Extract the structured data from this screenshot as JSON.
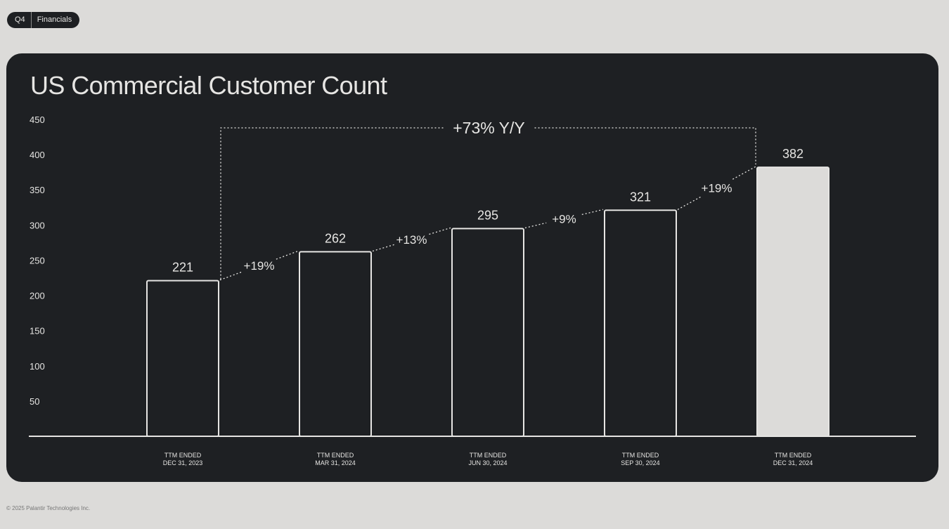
{
  "tag": {
    "quarter": "Q4",
    "section": "Financials"
  },
  "footer": "© 2025 Palantir Technologies Inc.",
  "colors": {
    "page_bg": "#dcdbd9",
    "card_bg": "#1e2023",
    "ink": "#e6e5e3",
    "highlight_bar": "#dcdbd9"
  },
  "chart_data": {
    "type": "bar",
    "title": "US Commercial Customer Count",
    "categories": [
      [
        "TTM ENDED",
        "DEC 31, 2023"
      ],
      [
        "TTM ENDED",
        "MAR 31, 2024"
      ],
      [
        "TTM ENDED",
        "JUN 30, 2024"
      ],
      [
        "TTM ENDED",
        "SEP 30, 2024"
      ],
      [
        "TTM ENDED",
        "DEC 31, 2024"
      ]
    ],
    "values": [
      221,
      262,
      295,
      321,
      382
    ],
    "value_labels": [
      "221",
      "262",
      "295",
      "321",
      "382"
    ],
    "highlighted_index": 4,
    "ylim": [
      0,
      450
    ],
    "yticks": [
      50,
      100,
      150,
      200,
      250,
      300,
      350,
      400,
      450
    ],
    "growth_labels": [
      "+19%",
      "+13%",
      "+9%",
      "+19%"
    ],
    "yoy_label": "+73% Y/Y",
    "grid": false,
    "legend": "none"
  }
}
